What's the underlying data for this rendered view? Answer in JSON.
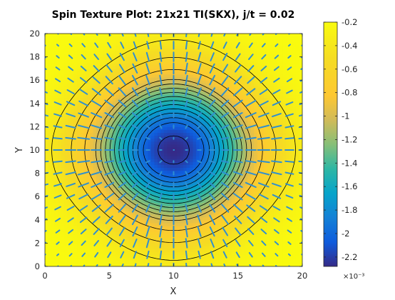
{
  "chart_data": {
    "type": "heatmap",
    "title": "Spin Texture Plot: 21x21 TI(SKX), j/t = 0.02",
    "xlabel": "X",
    "ylabel": "Y",
    "xlim": [
      0,
      20
    ],
    "ylim": [
      0,
      20
    ],
    "x_ticks": [
      "0",
      "5",
      "10",
      "15",
      "20"
    ],
    "y_ticks": [
      "0",
      "2",
      "4",
      "6",
      "8",
      "10",
      "12",
      "14",
      "16",
      "18",
      "20"
    ],
    "grid_size": [
      21,
      21
    ],
    "field_model": {
      "center": [
        10,
        10
      ],
      "value_range": [
        -0.00228,
        -0.0002
      ]
    },
    "contour_levels": [
      -0.0022,
      -0.002,
      -0.0019,
      -0.0018,
      -0.0017,
      -0.0016,
      -0.0015,
      -0.0014,
      -0.0013,
      -0.0012,
      -0.0011,
      -0.001,
      -0.0008,
      -0.0006,
      -0.0004
    ],
    "quiver": {
      "type": "radial",
      "color": "#2f8fd0"
    },
    "colorbar": {
      "ticks": [
        "-0.2",
        "-0.4",
        "-0.6",
        "-0.8",
        "-1",
        "-1.2",
        "-1.4",
        "-1.6",
        "-1.8",
        "-2",
        "-2.2"
      ],
      "tick_values": [
        -0.2,
        -0.4,
        -0.6,
        -0.8,
        -1.0,
        -1.2,
        -1.4,
        -1.6,
        -1.8,
        -2.0,
        -2.2
      ],
      "range": [
        -2.28,
        -0.2
      ],
      "exponent": "×10⁻³",
      "colormap": "parula",
      "position": "right"
    }
  }
}
